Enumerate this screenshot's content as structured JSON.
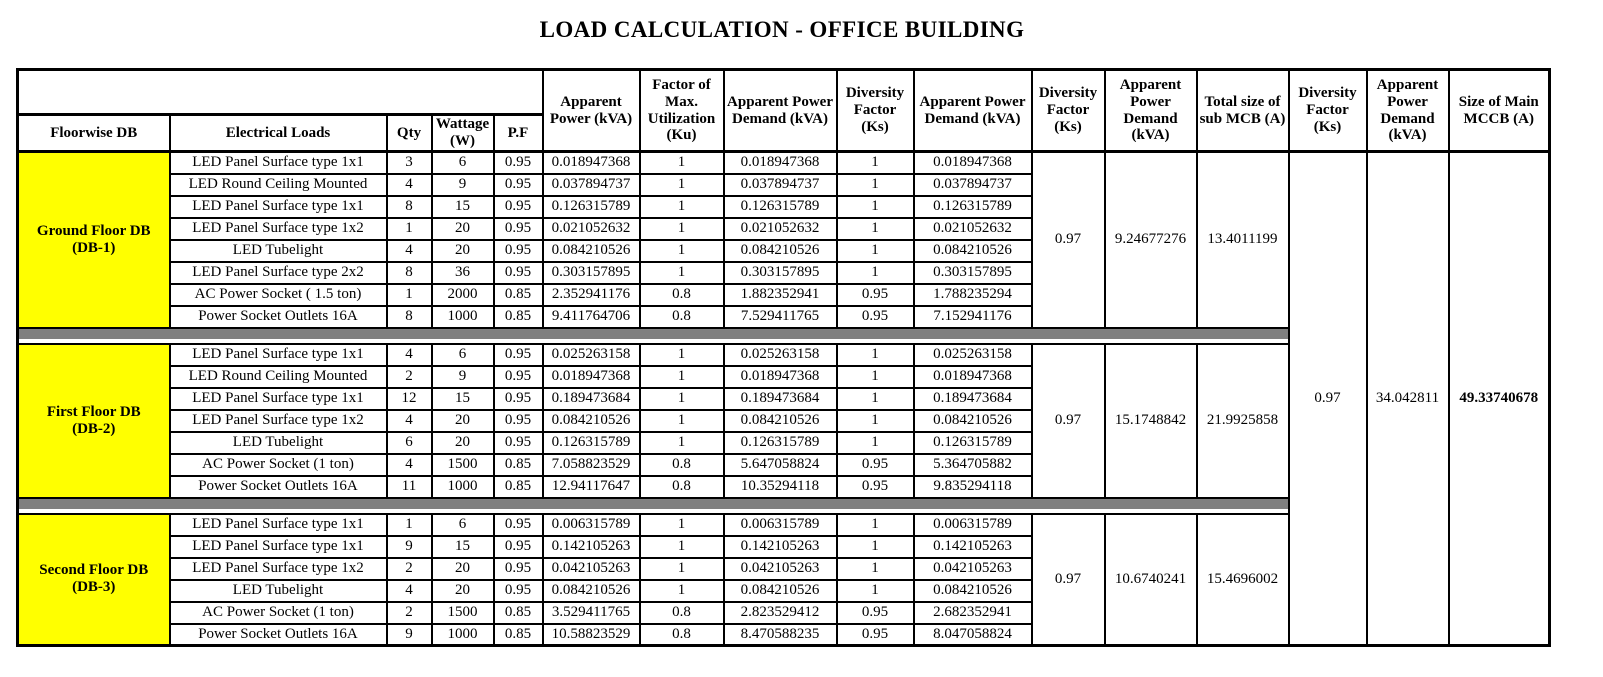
{
  "title": "LOAD CALCULATION - OFFICE BUILDING",
  "colors": {
    "floor_label_bg": "#ffff00",
    "separator_bar": "#7f7f7f",
    "border": "#000000"
  },
  "table": {
    "columns": [
      {
        "id": "floorwise-db",
        "label": "Floorwise DB"
      },
      {
        "id": "electrical-loads",
        "label": "Electrical Loads"
      },
      {
        "id": "qty",
        "label": "Qty"
      },
      {
        "id": "wattage-w",
        "label": "Wattage (W)"
      },
      {
        "id": "pf",
        "label": "P.F"
      },
      {
        "id": "apparent-power-kva",
        "label": "Apparent Power (kVA)"
      },
      {
        "id": "factor-of-max-utilization-ku",
        "label": "Factor of Max. Utilization (Ku)"
      },
      {
        "id": "apparent-power-demand-kva-1",
        "label": "Apparent Power Demand (kVA)"
      },
      {
        "id": "diversity-factor-ks-1",
        "label": "Diversity Factor (Ks)"
      },
      {
        "id": "apparent-power-demand-kva-2",
        "label": "Apparent Power Demand (kVA)"
      },
      {
        "id": "diversity-factor-ks-2",
        "label": "Diversity Factor (Ks)"
      },
      {
        "id": "apparent-power-demand-kva-3",
        "label": "Apparent Power Demand (kVA)"
      },
      {
        "id": "total-size-of-sub-mcb-a",
        "label": "Total size of sub MCB (A)"
      },
      {
        "id": "diversity-factor-ks-3",
        "label": "Diversity Factor (Ks)"
      },
      {
        "id": "apparent-power-demand-kva-4",
        "label": "Apparent Power Demand (kVA)"
      },
      {
        "id": "size-of-main-mccb-a",
        "label": "Size of Main MCCB (A)"
      }
    ],
    "sections": [
      {
        "floor_name": "Ground Floor DB",
        "floor_code": "(DB-1)",
        "rows": [
          [
            "LED Panel Surface type 1x1",
            "3",
            "6",
            "0.95",
            "0.018947368",
            "1",
            "0.018947368",
            "1",
            "0.018947368"
          ],
          [
            "LED Round Ceiling Mounted",
            "4",
            "9",
            "0.95",
            "0.037894737",
            "1",
            "0.037894737",
            "1",
            "0.037894737"
          ],
          [
            "LED Panel Surface type 1x1",
            "8",
            "15",
            "0.95",
            "0.126315789",
            "1",
            "0.126315789",
            "1",
            "0.126315789"
          ],
          [
            "LED Panel Surface type 1x2",
            "1",
            "20",
            "0.95",
            "0.021052632",
            "1",
            "0.021052632",
            "1",
            "0.021052632"
          ],
          [
            "LED Tubelight",
            "4",
            "20",
            "0.95",
            "0.084210526",
            "1",
            "0.084210526",
            "1",
            "0.084210526"
          ],
          [
            "LED Panel Surface type 2x2",
            "8",
            "36",
            "0.95",
            "0.303157895",
            "1",
            "0.303157895",
            "1",
            "0.303157895"
          ],
          [
            "AC Power Socket ( 1.5 ton)",
            "1",
            "2000",
            "0.85",
            "2.352941176",
            "0.8",
            "1.882352941",
            "0.95",
            "1.788235294"
          ],
          [
            "Power Socket Outlets 16A",
            "8",
            "1000",
            "0.85",
            "9.411764706",
            "0.8",
            "7.529411765",
            "0.95",
            "7.152941176"
          ]
        ],
        "diversity_factor_ks": "0.97",
        "apparent_power_demand_kva": "9.24677276",
        "total_size_sub_mcb_a": "13.4011199"
      },
      {
        "floor_name": "First Floor DB",
        "floor_code": "(DB-2)",
        "rows": [
          [
            "LED Panel Surface type 1x1",
            "4",
            "6",
            "0.95",
            "0.025263158",
            "1",
            "0.025263158",
            "1",
            "0.025263158"
          ],
          [
            "LED Round Ceiling Mounted",
            "2",
            "9",
            "0.95",
            "0.018947368",
            "1",
            "0.018947368",
            "1",
            "0.018947368"
          ],
          [
            "LED Panel Surface type 1x1",
            "12",
            "15",
            "0.95",
            "0.189473684",
            "1",
            "0.189473684",
            "1",
            "0.189473684"
          ],
          [
            "LED Panel Surface type 1x2",
            "4",
            "20",
            "0.95",
            "0.084210526",
            "1",
            "0.084210526",
            "1",
            "0.084210526"
          ],
          [
            "LED Tubelight",
            "6",
            "20",
            "0.95",
            "0.126315789",
            "1",
            "0.126315789",
            "1",
            "0.126315789"
          ],
          [
            "AC Power Socket (1 ton)",
            "4",
            "1500",
            "0.85",
            "7.058823529",
            "0.8",
            "5.647058824",
            "0.95",
            "5.364705882"
          ],
          [
            "Power Socket Outlets 16A",
            "11",
            "1000",
            "0.85",
            "12.94117647",
            "0.8",
            "10.35294118",
            "0.95",
            "9.835294118"
          ]
        ],
        "diversity_factor_ks": "0.97",
        "apparent_power_demand_kva": "15.1748842",
        "total_size_sub_mcb_a": "21.9925858"
      },
      {
        "floor_name": "Second Floor DB",
        "floor_code": "(DB-3)",
        "rows": [
          [
            "LED Panel Surface type 1x1",
            "1",
            "6",
            "0.95",
            "0.006315789",
            "1",
            "0.006315789",
            "1",
            "0.006315789"
          ],
          [
            "LED Panel Surface type 1x1",
            "9",
            "15",
            "0.95",
            "0.142105263",
            "1",
            "0.142105263",
            "1",
            "0.142105263"
          ],
          [
            "LED Panel Surface type 1x2",
            "2",
            "20",
            "0.95",
            "0.042105263",
            "1",
            "0.042105263",
            "1",
            "0.042105263"
          ],
          [
            "LED Tubelight",
            "4",
            "20",
            "0.95",
            "0.084210526",
            "1",
            "0.084210526",
            "1",
            "0.084210526"
          ],
          [
            "AC Power Socket (1 ton)",
            "2",
            "1500",
            "0.85",
            "3.529411765",
            "0.8",
            "2.823529412",
            "0.95",
            "2.682352941"
          ],
          [
            "Power Socket Outlets 16A",
            "9",
            "1000",
            "0.85",
            "10.58823529",
            "0.8",
            "8.470588235",
            "0.95",
            "8.047058824"
          ]
        ],
        "diversity_factor_ks": "0.97",
        "apparent_power_demand_kva": "10.6740241",
        "total_size_sub_mcb_a": "15.4696002"
      }
    ],
    "summary": {
      "diversity_factor_ks": "0.97",
      "apparent_power_demand_kva": "34.042811",
      "size_of_main_mccb_a": "49.33740678"
    }
  }
}
